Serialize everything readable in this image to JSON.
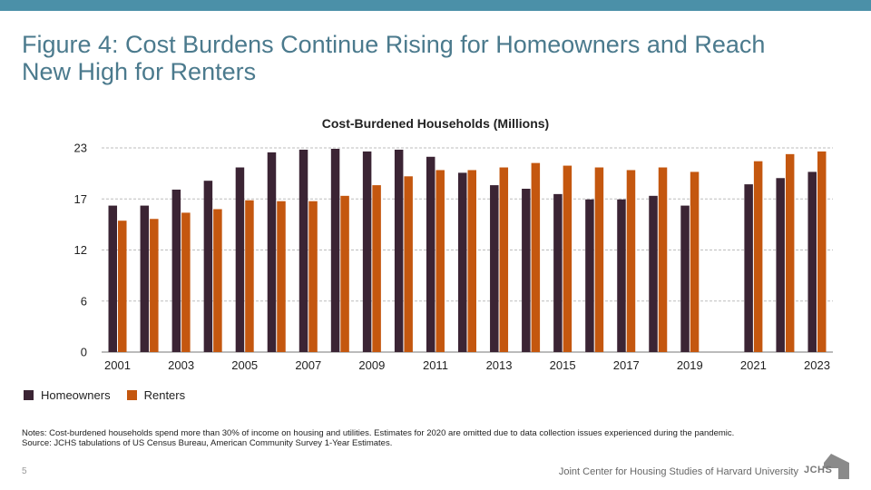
{
  "theme": {
    "band_color": "#4b90a8",
    "title_color": "#4b7a8d",
    "homeowners_color": "#3b2434",
    "renters_color": "#c4570f"
  },
  "slide": {
    "title_line1": "Figure 4: Cost Burdens Continue Rising for Homeowners and Reach",
    "title_line2": "New High for Renters",
    "notes_line1": "Notes: Cost-burdened households spend more than 30% of income on housing and utilities. Estimates for 2020 are omitted due to data collection issues experienced during the pandemic.",
    "notes_line2": "Source: JCHS tabulations of US Census Bureau, American Community Survey 1-Year Estimates.",
    "page_number": "5",
    "footer": "Joint Center for Housing Studies of Harvard University",
    "logo_text": "JCHS"
  },
  "chart_data": {
    "type": "bar",
    "title": "Cost-Burdened Households (Millions)",
    "xlabel": "",
    "ylabel": "",
    "ylim": [
      0,
      23
    ],
    "yticks": [
      "0",
      "6",
      "12",
      "17",
      "23"
    ],
    "ytick_values": [
      0,
      5.75,
      11.5,
      17.25,
      23
    ],
    "grid": true,
    "legend_position": "bottom-left",
    "categories": [
      "2001",
      "2002",
      "2003",
      "2004",
      "2005",
      "2006",
      "2007",
      "2008",
      "2009",
      "2010",
      "2011",
      "2012",
      "2013",
      "2014",
      "2015",
      "2016",
      "2017",
      "2018",
      "2019",
      "2020",
      "2021",
      "2022",
      "2023"
    ],
    "xtick_labels": [
      "2001",
      "",
      "2003",
      "",
      "2005",
      "",
      "2007",
      "",
      "2009",
      "",
      "2011",
      "",
      "2013",
      "",
      "2015",
      "",
      "2017",
      "",
      "2019",
      "",
      "2021",
      "",
      "2023"
    ],
    "series": [
      {
        "name": "Homeowners",
        "values": [
          16.5,
          16.5,
          18.3,
          19.3,
          20.8,
          22.5,
          22.8,
          22.9,
          22.6,
          22.8,
          22.0,
          20.2,
          18.8,
          18.4,
          17.8,
          17.2,
          17.2,
          17.6,
          16.5,
          null,
          18.9,
          19.6,
          20.3
        ]
      },
      {
        "name": "Renters",
        "values": [
          14.8,
          15.0,
          15.7,
          16.1,
          17.1,
          17.0,
          17.0,
          17.6,
          18.8,
          19.8,
          20.5,
          20.5,
          20.8,
          21.3,
          21.0,
          20.8,
          20.5,
          20.8,
          20.3,
          null,
          21.5,
          22.3,
          22.6
        ]
      }
    ]
  }
}
